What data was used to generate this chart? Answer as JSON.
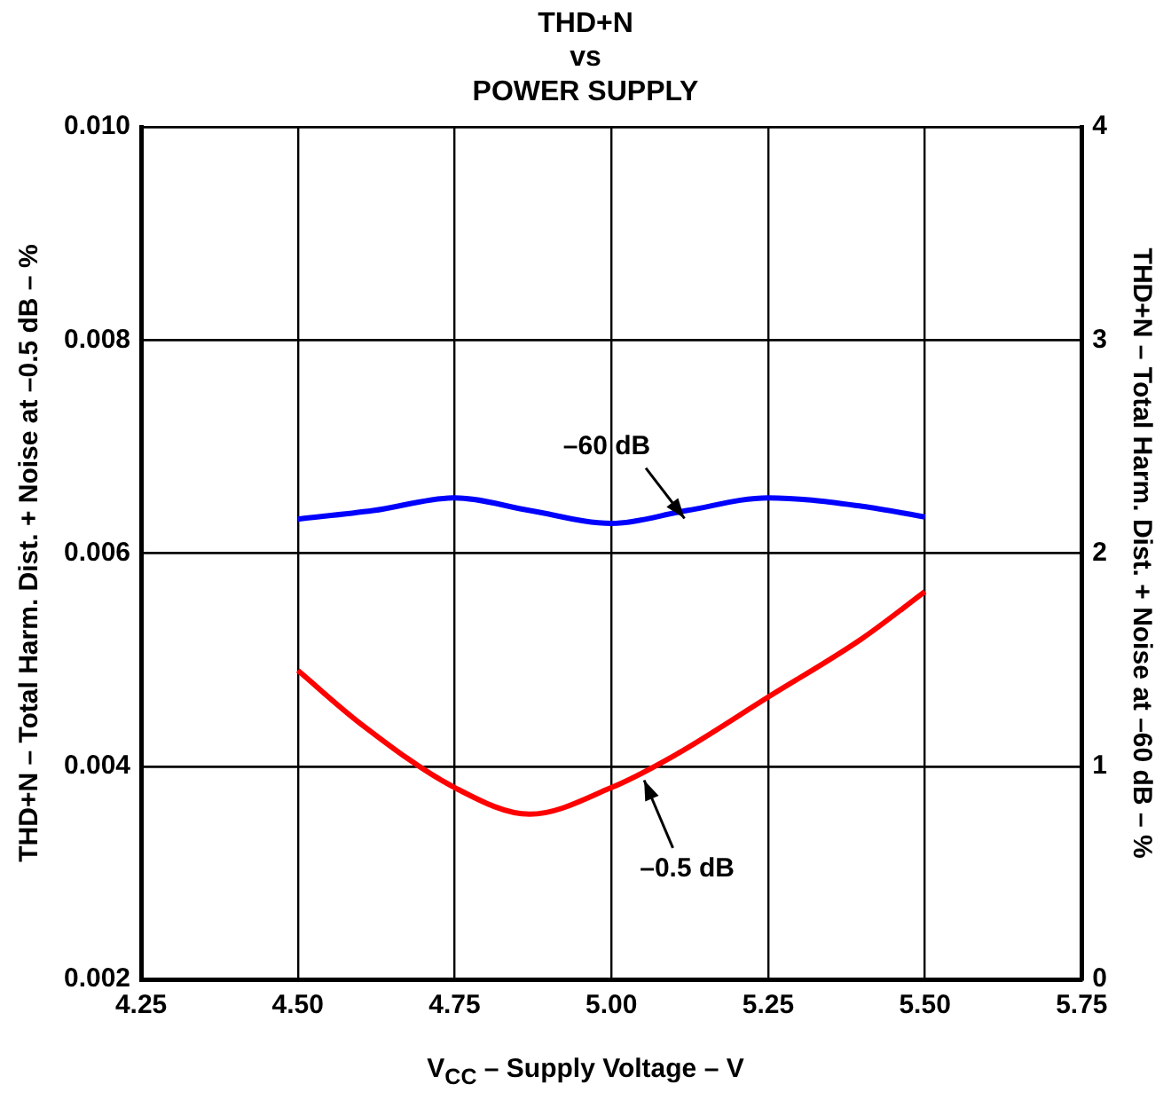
{
  "chart_data": {
    "type": "line",
    "title": "THD+N\nvs\nPOWER SUPPLY",
    "xlabel": "V$_{CC}$ – Supply Voltage – V",
    "ylabel": "THD+N – Total Harm. Dist. + Noise at –0.5 dB – %",
    "y2label": "THD+N – Total Harm. Dist. + Noise at –60 dB – %",
    "series": [
      {
        "color": "#0000ff",
        "axis": "y2",
        "x": [
          4.5,
          4.62,
          4.75,
          4.87,
          5.0,
          5.12,
          5.25,
          5.4,
          5.5
        ],
        "values": [
          2.16,
          2.2,
          2.26,
          2.2,
          2.14,
          2.2,
          2.26,
          2.22,
          2.17
        ]
      },
      {
        "color": "#ff0000",
        "axis": "y",
        "x": [
          4.5,
          4.6,
          4.75,
          4.87,
          5.0,
          5.1,
          5.25,
          5.4,
          5.5
        ],
        "values": [
          0.0049,
          0.0044,
          0.0038,
          0.00355,
          0.0038,
          0.0041,
          0.00465,
          0.0052,
          0.00564
        ]
      }
    ],
    "xlim": [
      4.25,
      5.75
    ],
    "xticks": [
      {
        "value": 4.25,
        "label": "4.25"
      },
      {
        "value": 4.5,
        "label": "4.50"
      },
      {
        "value": 4.75,
        "label": "4.75"
      },
      {
        "value": 5,
        "label": "5.00"
      },
      {
        "value": 5.25,
        "label": "5.25"
      },
      {
        "value": 5.5,
        "label": "5.50"
      },
      {
        "value": 5.75,
        "label": "5.75"
      }
    ],
    "ylim": [
      0.002,
      0.01
    ],
    "yticks": [
      0.002,
      0.004,
      0.006,
      0.008,
      {
        "value": 0.01,
        "label": "0.010"
      }
    ],
    "y2lim": [
      0,
      4
    ],
    "y2ticks": [
      0,
      1,
      2,
      3,
      4
    ],
    "annotations": [
      {
        "text": "–60 dB",
        "x": 5.12,
        "y": 0.0063
      },
      {
        "text": "–0.5 dB",
        "x": 5.05,
        "y": 0.0039
      }
    ],
    "grid": true,
    "legend": false,
    "line_style": "solid",
    "marker": "none"
  }
}
